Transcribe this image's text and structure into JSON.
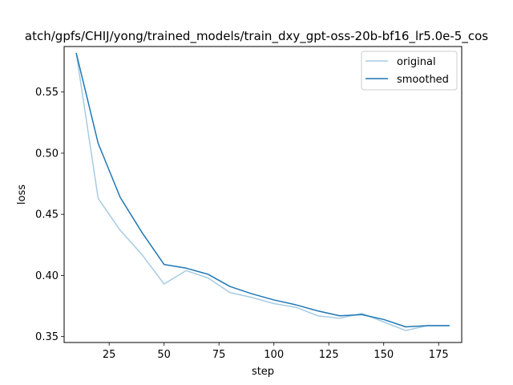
{
  "chart_data": {
    "type": "line",
    "title": "atch/gpfs/CHIJ/yong/trained_models/train_dxy_gpt-oss-20b-bf16_lr5.0e-5_cos",
    "xlabel": "step",
    "ylabel": "loss",
    "xlim": [
      4.5,
      185.5
    ],
    "ylim": [
      0.3452,
      0.5872
    ],
    "xticks": [
      25,
      50,
      75,
      100,
      125,
      150,
      175
    ],
    "yticks": [
      0.35,
      0.4,
      0.45,
      0.5,
      0.55
    ],
    "ytick_labels": [
      "0.35",
      "0.40",
      "0.45",
      "0.50",
      "0.55"
    ],
    "legend_position": "top-right",
    "grid": false,
    "series": [
      {
        "name": "original",
        "color": "#a6cbe3",
        "x": [
          10,
          20,
          30,
          40,
          50,
          60,
          70,
          80,
          90,
          100,
          110,
          120,
          130,
          140,
          150,
          160,
          170,
          180
        ],
        "y": [
          0.582,
          0.463,
          0.437,
          0.417,
          0.393,
          0.404,
          0.398,
          0.386,
          0.382,
          0.377,
          0.374,
          0.367,
          0.365,
          0.369,
          0.362,
          0.355,
          0.359,
          0.359
        ]
      },
      {
        "name": "smoothed",
        "color": "#1f77b4",
        "x": [
          10,
          20,
          30,
          40,
          50,
          60,
          70,
          80,
          90,
          100,
          110,
          120,
          130,
          140,
          150,
          160,
          170,
          180
        ],
        "y": [
          0.582,
          0.508,
          0.464,
          0.435,
          0.409,
          0.406,
          0.401,
          0.391,
          0.385,
          0.38,
          0.376,
          0.371,
          0.367,
          0.368,
          0.364,
          0.358,
          0.359,
          0.359
        ]
      }
    ]
  }
}
